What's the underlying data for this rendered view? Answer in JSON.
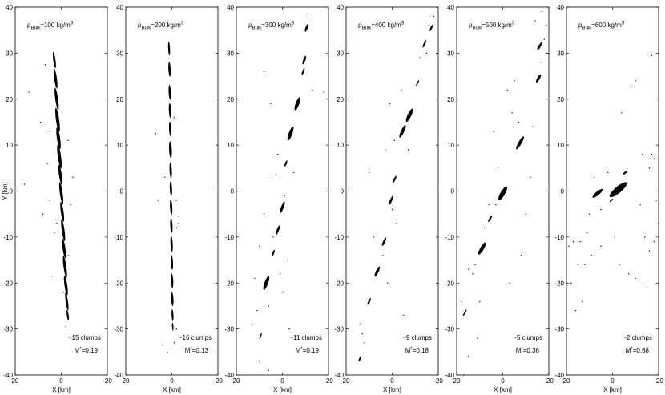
{
  "chart_data": {
    "type": "scatter",
    "shared": {
      "xlabel": "X [km]",
      "ylabel": "Y [km]",
      "xlim": [
        20,
        -20
      ],
      "ylim": [
        -40,
        40
      ],
      "xticks": [
        20,
        0,
        -20
      ],
      "yticks": [
        40,
        30,
        20,
        10,
        0,
        -10,
        -20,
        -30,
        -40
      ],
      "grid": false
    },
    "panels": [
      {
        "title_text": "ρ",
        "title_sub": "Bulk",
        "title_rest": "=100 kg/m",
        "title_sup": "3",
        "annotation_clumps": "~15 clumps",
        "annotation_m_pre": "M",
        "annotation_m_sup": "*",
        "annotation_m_post": "=0.19",
        "clumps": [
          {
            "x": 3,
            "y": 28.5,
            "rx": 0.5,
            "ry": 1.8,
            "rot": -8
          },
          {
            "x": 2.5,
            "y": 24.5,
            "rx": 0.6,
            "ry": 2.2,
            "rot": -8
          },
          {
            "x": 2.0,
            "y": 20.0,
            "rx": 0.6,
            "ry": 2.5,
            "rot": -8
          },
          {
            "x": 1.6,
            "y": 15.5,
            "rx": 0.7,
            "ry": 2.6,
            "rot": -8
          },
          {
            "x": 1.2,
            "y": 11.5,
            "rx": 0.7,
            "ry": 2.4,
            "rot": -8
          },
          {
            "x": 0.8,
            "y": 7.5,
            "rx": 0.7,
            "ry": 2.6,
            "rot": -8
          },
          {
            "x": 0.4,
            "y": 3.5,
            "rx": 0.6,
            "ry": 2.2,
            "rot": -8
          },
          {
            "x": 0.0,
            "y": -0.5,
            "rx": 0.6,
            "ry": 2.4,
            "rot": -8
          },
          {
            "x": -0.4,
            "y": -4.5,
            "rx": 0.6,
            "ry": 2.2,
            "rot": -8
          },
          {
            "x": -0.8,
            "y": -8.5,
            "rx": 0.6,
            "ry": 2.4,
            "rot": -8
          },
          {
            "x": -1.2,
            "y": -12.5,
            "rx": 0.6,
            "ry": 2.2,
            "rot": -8
          },
          {
            "x": -1.6,
            "y": -16.5,
            "rx": 0.6,
            "ry": 2.4,
            "rot": -8
          },
          {
            "x": -2.0,
            "y": -20.5,
            "rx": 0.6,
            "ry": 2.2,
            "rot": -8
          },
          {
            "x": -2.4,
            "y": -24.0,
            "rx": 0.5,
            "ry": 2.0,
            "rot": -8
          },
          {
            "x": -2.8,
            "y": -27.0,
            "rx": 0.4,
            "ry": 1.2,
            "rot": -8
          }
        ],
        "particles": [
          [
            14,
            21.5
          ],
          [
            7,
            27.5
          ],
          [
            16,
            1.5
          ],
          [
            -3,
            11
          ],
          [
            5,
            -2
          ],
          [
            -4,
            -3
          ],
          [
            6,
            6
          ],
          [
            -2,
            -29.5
          ],
          [
            4,
            -18.5
          ],
          [
            -5,
            3
          ],
          [
            8,
            -5
          ],
          [
            -1,
            -22
          ],
          [
            3,
            -9
          ],
          [
            9,
            15
          ],
          [
            -3,
            -14
          ],
          [
            5,
            13
          ],
          [
            2,
            -7
          ]
        ]
      },
      {
        "title_text": "ρ",
        "title_sub": "Bulk",
        "title_rest": "=200 kg/m",
        "title_sup": "3",
        "annotation_clumps": "~16 clumps",
        "annotation_m_pre": "M",
        "annotation_m_sup": "*",
        "annotation_m_post": "=0.13",
        "clumps": [
          {
            "x": 1.2,
            "y": 31,
            "rx": 0.4,
            "ry": 1.5,
            "rot": -3
          },
          {
            "x": 1.0,
            "y": 26.5,
            "rx": 0.5,
            "ry": 1.6,
            "rot": -3
          },
          {
            "x": 0.9,
            "y": 21.5,
            "rx": 0.5,
            "ry": 1.6,
            "rot": -3
          },
          {
            "x": 0.8,
            "y": 17.5,
            "rx": 0.5,
            "ry": 1.6,
            "rot": -3
          },
          {
            "x": 0.7,
            "y": 13.5,
            "rx": 0.5,
            "ry": 1.6,
            "rot": -3
          },
          {
            "x": 0.6,
            "y": 9.0,
            "rx": 0.6,
            "ry": 1.8,
            "rot": -3
          },
          {
            "x": 0.5,
            "y": 4.5,
            "rx": 0.5,
            "ry": 1.7,
            "rot": -3
          },
          {
            "x": 0.4,
            "y": 0.5,
            "rx": 0.5,
            "ry": 1.6,
            "rot": -3
          },
          {
            "x": 0.3,
            "y": -3.5,
            "rx": 0.5,
            "ry": 1.7,
            "rot": -3
          },
          {
            "x": 0.2,
            "y": -7.5,
            "rx": 0.5,
            "ry": 1.6,
            "rot": -3
          },
          {
            "x": 0.1,
            "y": -11.5,
            "rx": 0.5,
            "ry": 1.7,
            "rot": -3
          },
          {
            "x": 0.0,
            "y": -15.5,
            "rx": 0.5,
            "ry": 1.6,
            "rot": -3
          },
          {
            "x": -0.1,
            "y": -19.5,
            "rx": 0.5,
            "ry": 1.6,
            "rot": -3
          },
          {
            "x": -0.2,
            "y": -23.5,
            "rx": 0.5,
            "ry": 1.5,
            "rot": -3
          },
          {
            "x": -0.3,
            "y": -27.0,
            "rx": 0.4,
            "ry": 1.3,
            "rot": -3
          },
          {
            "x": -0.4,
            "y": -29.5,
            "rx": 0.3,
            "ry": 0.9,
            "rot": -3
          }
        ],
        "particles": [
          [
            2,
            37
          ],
          [
            7,
            12.5
          ],
          [
            -2,
            -2
          ],
          [
            -3,
            -5.5
          ],
          [
            -2,
            -8
          ],
          [
            -3,
            -7
          ],
          [
            6,
            -2
          ],
          [
            -1,
            -33
          ],
          [
            2,
            -35
          ],
          [
            4,
            -33.5
          ],
          [
            -2,
            -30
          ],
          [
            3,
            3
          ],
          [
            -1,
            16
          ]
        ]
      },
      {
        "title_text": "ρ",
        "title_sub": "Bulk",
        "title_rest": "=300 kg/m",
        "title_sup": "3",
        "annotation_clumps": "~11 clumps",
        "annotation_m_pre": "M",
        "annotation_m_sup": "*",
        "annotation_m_post": "=0.19",
        "clumps": [
          {
            "x": -10.5,
            "y": 35.5,
            "rx": 0.5,
            "ry": 0.9,
            "rot": 20
          },
          {
            "x": -9.5,
            "y": 28.5,
            "rx": 0.5,
            "ry": 1.0,
            "rot": 20
          },
          {
            "x": -9.0,
            "y": 26.0,
            "rx": 0.4,
            "ry": 0.8,
            "rot": 20
          },
          {
            "x": -6.5,
            "y": 19.0,
            "rx": 0.8,
            "ry": 1.5,
            "rot": 20
          },
          {
            "x": -3.5,
            "y": 12.5,
            "rx": 0.8,
            "ry": 1.6,
            "rot": 20
          },
          {
            "x": -1.5,
            "y": 6.0,
            "rx": 0.4,
            "ry": 0.7,
            "rot": 20
          },
          {
            "x": 0.0,
            "y": -3.5,
            "rx": 0.6,
            "ry": 1.3,
            "rot": 20
          },
          {
            "x": 2.0,
            "y": -8.5,
            "rx": 0.5,
            "ry": 1.1,
            "rot": 20
          },
          {
            "x": 4.0,
            "y": -13.5,
            "rx": 0.4,
            "ry": 0.8,
            "rot": 20
          },
          {
            "x": 7.0,
            "y": -20.0,
            "rx": 0.8,
            "ry": 1.6,
            "rot": 20
          },
          {
            "x": 9.5,
            "y": -31.5,
            "rx": 0.3,
            "ry": 0.7,
            "rot": 20
          }
        ],
        "particles": [
          [
            -11,
            38.5
          ],
          [
            -18,
            21.5
          ],
          [
            -13,
            22
          ],
          [
            5,
            19
          ],
          [
            8,
            26
          ],
          [
            3,
            3.5
          ],
          [
            -1,
            -1
          ],
          [
            4,
            -10
          ],
          [
            10,
            -12
          ],
          [
            6,
            -25
          ],
          [
            11,
            -26
          ],
          [
            13,
            -29
          ],
          [
            10,
            -37
          ],
          [
            6,
            -39
          ],
          [
            0,
            -22
          ],
          [
            -2,
            -15
          ],
          [
            8,
            -5
          ],
          [
            -5,
            4
          ],
          [
            2,
            8
          ],
          [
            1,
            -18
          ],
          [
            12,
            -19
          ],
          [
            -3,
            -30
          ]
        ]
      },
      {
        "title_text": "ρ",
        "title_sub": "Bulk",
        "title_rest": "=400 kg/m",
        "title_sup": "3",
        "annotation_clumps": "~9 clumps",
        "annotation_m_pre": "M",
        "annotation_m_sup": "*",
        "annotation_m_post": "=0.18",
        "clumps": [
          {
            "x": -17.0,
            "y": 35.5,
            "rx": 0.4,
            "ry": 0.8,
            "rot": 25
          },
          {
            "x": -14.0,
            "y": 32.0,
            "rx": 0.4,
            "ry": 0.9,
            "rot": 25
          },
          {
            "x": -11.0,
            "y": 23.5,
            "rx": 0.3,
            "ry": 0.7,
            "rot": 25
          },
          {
            "x": -7.5,
            "y": 16.5,
            "rx": 0.8,
            "ry": 1.6,
            "rot": 25
          },
          {
            "x": -4.5,
            "y": 13.0,
            "rx": 0.7,
            "ry": 1.5,
            "rot": 25
          },
          {
            "x": -1.0,
            "y": 2.5,
            "rx": 0.4,
            "ry": 0.9,
            "rot": 25
          },
          {
            "x": 0.5,
            "y": -2.0,
            "rx": 0.5,
            "ry": 1.1,
            "rot": 25
          },
          {
            "x": 3.5,
            "y": -11.0,
            "rx": 0.5,
            "ry": 1.0,
            "rot": 25
          },
          {
            "x": 6.5,
            "y": -17.5,
            "rx": 0.6,
            "ry": 1.2,
            "rot": 25
          },
          {
            "x": 10.0,
            "y": -24.0,
            "rx": 0.4,
            "ry": 0.8,
            "rot": 25
          },
          {
            "x": 14.0,
            "y": -36.5,
            "rx": 0.4,
            "ry": 0.6,
            "rot": 25
          }
        ],
        "particles": [
          [
            -18,
            38
          ],
          [
            -16,
            36
          ],
          [
            -12,
            29
          ],
          [
            -4,
            22
          ],
          [
            -1,
            11
          ],
          [
            3,
            9
          ],
          [
            0,
            -4
          ],
          [
            -2,
            -7
          ],
          [
            8,
            -10
          ],
          [
            4,
            -14
          ],
          [
            14,
            -29
          ],
          [
            13,
            -31
          ],
          [
            2,
            -20
          ],
          [
            -5,
            -27
          ],
          [
            10,
            4
          ],
          [
            -7,
            9
          ],
          [
            1,
            19
          ],
          [
            12,
            -33
          ],
          [
            -15,
            30
          ]
        ]
      },
      {
        "title_text": "ρ",
        "title_sub": "Bulk",
        "title_rest": "=500 kg/m",
        "title_sup": "3",
        "annotation_clumps": "~5 clumps",
        "annotation_m_pre": "M",
        "annotation_m_sup": "*",
        "annotation_m_post": "=0.36",
        "clumps": [
          {
            "x": -16.0,
            "y": 31.5,
            "rx": 0.5,
            "ry": 1.0,
            "rot": 30
          },
          {
            "x": -15.5,
            "y": 24.5,
            "rx": 0.6,
            "ry": 1.0,
            "rot": 30
          },
          {
            "x": -7.5,
            "y": 10.5,
            "rx": 0.7,
            "ry": 1.6,
            "rot": 30
          },
          {
            "x": 0.0,
            "y": -0.5,
            "rx": 1.0,
            "ry": 1.7,
            "rot": 30
          },
          {
            "x": 5.5,
            "y": -6.0,
            "rx": 0.4,
            "ry": 0.8,
            "rot": 30
          },
          {
            "x": 9.0,
            "y": -12.5,
            "rx": 0.8,
            "ry": 1.5,
            "rot": 30
          },
          {
            "x": 16.5,
            "y": -26.5,
            "rx": 0.3,
            "ry": 0.8,
            "rot": 30
          }
        ],
        "particles": [
          [
            -17,
            39
          ],
          [
            -19,
            36
          ],
          [
            -18,
            33
          ],
          [
            -19,
            30
          ],
          [
            -17,
            28
          ],
          [
            -14,
            37
          ],
          [
            -5,
            24
          ],
          [
            -7,
            15
          ],
          [
            -4,
            17
          ],
          [
            -2,
            22
          ],
          [
            2,
            5
          ],
          [
            -12,
            3
          ],
          [
            3,
            -3
          ],
          [
            6,
            -3
          ],
          [
            8,
            -8
          ],
          [
            12,
            -16
          ],
          [
            13,
            -18
          ],
          [
            15,
            -17
          ],
          [
            18,
            -24
          ],
          [
            10,
            -24
          ],
          [
            11,
            -32
          ],
          [
            15,
            -36
          ],
          [
            17,
            -40
          ],
          [
            -3,
            -20
          ],
          [
            -10,
            -5
          ],
          [
            -8,
            -14
          ],
          [
            4,
            13
          ],
          [
            -13,
            14
          ]
        ]
      },
      {
        "title_text": "ρ",
        "title_sub": "Bulk",
        "title_rest": "=600 kg/m",
        "title_sup": "3",
        "annotation_clumps": "~2 clumps",
        "annotation_m_pre": "M",
        "annotation_m_sup": "*",
        "annotation_m_post": "=0.68",
        "clumps": [
          {
            "x": -2.5,
            "y": 0.3,
            "rx": 1.4,
            "ry": 2.4,
            "rot": 50
          },
          {
            "x": 6.5,
            "y": -0.5,
            "rx": 0.8,
            "ry": 1.4,
            "rot": 50
          },
          {
            "x": -5.5,
            "y": 4.0,
            "rx": 0.4,
            "ry": 0.6,
            "rot": 50
          },
          {
            "x": 0.5,
            "y": -2.0,
            "rx": 0.3,
            "ry": 0.5,
            "rot": 50
          }
        ],
        "particles": [
          [
            -17,
            29.5
          ],
          [
            -10,
            24
          ],
          [
            -8,
            23
          ],
          [
            -4,
            17
          ],
          [
            -17,
            8
          ],
          [
            -18,
            7
          ],
          [
            -16,
            5
          ],
          [
            -13,
            8
          ],
          [
            -19,
            -2
          ],
          [
            -20,
            -7
          ],
          [
            -12,
            -3
          ],
          [
            -14,
            -10
          ],
          [
            -18,
            -11
          ],
          [
            -16,
            -13
          ],
          [
            -7,
            -18
          ],
          [
            -3,
            -16
          ],
          [
            -15,
            -21
          ],
          [
            -10,
            -19
          ],
          [
            -1,
            -10
          ],
          [
            5,
            -4
          ],
          [
            10,
            -5
          ],
          [
            11,
            -9
          ],
          [
            14,
            -11
          ],
          [
            17,
            -11
          ],
          [
            12,
            -16
          ],
          [
            15,
            -16
          ],
          [
            18,
            -20
          ],
          [
            13,
            -24
          ],
          [
            16,
            -26
          ],
          [
            19,
            -12
          ],
          [
            9,
            -14
          ],
          [
            5,
            -12
          ],
          [
            2,
            4
          ],
          [
            8,
            3
          ]
        ]
      }
    ]
  }
}
